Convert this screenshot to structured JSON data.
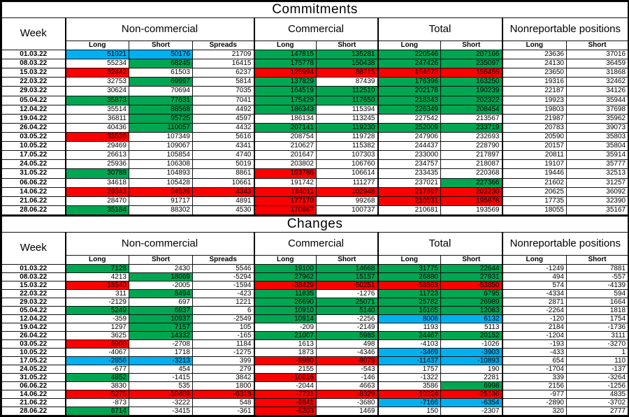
{
  "colors": {
    "green": "#00a651",
    "red": "#fe0000",
    "blue": "#00b0f0",
    "border": "#000000",
    "background": "#ffffff"
  },
  "tables": [
    {
      "title": "Commitments",
      "week_label": "Week",
      "groups": [
        "Non-commercial",
        "Commercial",
        "Total",
        "Nonreportable positions"
      ],
      "sub_headers": [
        "Long",
        "Short",
        "Spreads",
        "Long",
        "Short",
        "Long",
        "Short",
        "Long",
        "Short"
      ],
      "col_keys": [
        "noncommercial-long",
        "noncommercial-short",
        "noncommercial-spreads",
        "commercial-long",
        "commercial-short",
        "total-long",
        "total-short",
        "nonreportable-long",
        "nonreportable-short"
      ],
      "rows": [
        {
          "week": "01.03.22",
          "values": [
            51021,
            50176,
            21709,
            147815,
            135281,
            220546,
            207166,
            23636,
            37016
          ],
          "colors": [
            "b",
            "b",
            "",
            "g",
            "g",
            "g",
            "g",
            "",
            ""
          ]
        },
        {
          "week": "08.03.22",
          "values": [
            55234,
            68245,
            16415,
            175778,
            150438,
            247426,
            235097,
            24130,
            36459
          ],
          "colors": [
            "",
            "g",
            "",
            "g",
            "g",
            "g",
            "g",
            "",
            ""
          ]
        },
        {
          "week": "15.03.22",
          "values": [
            32442,
            61503,
            6237,
            125994,
            88715,
            164673,
            156455,
            23650,
            31868
          ],
          "colors": [
            "r",
            "",
            "",
            "r",
            "r",
            "r",
            "r",
            "",
            ""
          ]
        },
        {
          "week": "22.03.22",
          "values": [
            32753,
            69997,
            5814,
            137829,
            87439,
            176396,
            163250,
            19316,
            32462
          ],
          "colors": [
            "",
            "g",
            "",
            "g",
            "",
            "g",
            "g",
            "",
            ""
          ]
        },
        {
          "week": "29.03.22",
          "values": [
            30624,
            70694,
            7035,
            164519,
            112510,
            202178,
            190239,
            22187,
            34126
          ],
          "colors": [
            "",
            "",
            "",
            "g",
            "g",
            "g",
            "g",
            "",
            ""
          ]
        },
        {
          "week": "05.04.22",
          "values": [
            35873,
            77631,
            7041,
            175429,
            117650,
            218343,
            202322,
            19923,
            35944
          ],
          "colors": [
            "g",
            "g",
            "",
            "g",
            "g",
            "g",
            "g",
            "",
            ""
          ]
        },
        {
          "week": "12.04.22",
          "values": [
            35514,
            88568,
            4492,
            186343,
            115394,
            226349,
            208454,
            19803,
            37698
          ],
          "colors": [
            "",
            "g",
            "",
            "g",
            "",
            "g",
            "g",
            "",
            ""
          ]
        },
        {
          "week": "19.04.22",
          "values": [
            36811,
            95725,
            4597,
            186134,
            113245,
            227542,
            213567,
            21987,
            35962
          ],
          "colors": [
            "",
            "g",
            "",
            "",
            "",
            "",
            "",
            "",
            ""
          ]
        },
        {
          "week": "26.04.22",
          "values": [
            40436,
            110057,
            4432,
            207141,
            119230,
            252009,
            233719,
            20783,
            39073
          ],
          "colors": [
            "",
            "g",
            "",
            "g",
            "g",
            "g",
            "g",
            "",
            ""
          ]
        },
        {
          "week": "03.05.22",
          "values": [
            33536,
            107349,
            5616,
            208754,
            119728,
            247906,
            232693,
            20590,
            35803
          ],
          "colors": [
            "r",
            "",
            "",
            "",
            "",
            "",
            "",
            "",
            ""
          ]
        },
        {
          "week": "10.05.22",
          "values": [
            29469,
            109067,
            4341,
            210627,
            115382,
            244437,
            228790,
            20157,
            35804
          ],
          "colors": [
            "",
            "",
            "",
            "",
            "",
            "",
            "",
            "",
            ""
          ]
        },
        {
          "week": "17.05.22",
          "values": [
            26613,
            105854,
            4740,
            201647,
            107303,
            233000,
            217897,
            20811,
            35914
          ],
          "colors": [
            "",
            "",
            "",
            "",
            "",
            "",
            "",
            "",
            ""
          ]
        },
        {
          "week": "24.05.22",
          "values": [
            25936,
            106308,
            5019,
            203802,
            106760,
            234757,
            218087,
            19107,
            35777
          ],
          "colors": [
            "",
            "",
            "",
            "",
            "",
            "",
            "",
            "",
            ""
          ]
        },
        {
          "week": "31.05.22",
          "values": [
            30788,
            104893,
            8861,
            193786,
            106614,
            233435,
            220368,
            19446,
            32513
          ],
          "colors": [
            "g",
            "",
            "",
            "r",
            "",
            "",
            "",
            "",
            ""
          ]
        },
        {
          "week": "06.06.22",
          "values": [
            34618,
            105428,
            10661,
            191742,
            111277,
            237021,
            227366,
            21602,
            31257
          ],
          "colors": [
            "",
            "",
            "",
            "",
            "",
            "",
            "g",
            "",
            ""
          ]
        },
        {
          "week": "14.06.22",
          "values": [
            29343,
            94939,
            4343,
            184011,
            102948,
            217697,
            202230,
            20625,
            36092
          ],
          "colors": [
            "r",
            "r",
            "r",
            "r",
            "r",
            "r",
            "r",
            "",
            ""
          ]
        },
        {
          "week": "21.06.22",
          "values": [
            28470,
            91717,
            4891,
            177170,
            99268,
            210531,
            195876,
            17735,
            32390
          ],
          "colors": [
            "",
            "",
            "",
            "r",
            "",
            "r",
            "r",
            "",
            ""
          ]
        },
        {
          "week": "28.06.22",
          "values": [
            35184,
            88302,
            4530,
            170967,
            100737,
            210681,
            193569,
            18055,
            35167
          ],
          "colors": [
            "g",
            "",
            "",
            "r",
            "",
            "",
            "",
            "",
            ""
          ],
          "bold": [
            5,
            6
          ]
        }
      ]
    },
    {
      "title": "Changes",
      "week_label": "Week",
      "groups": [
        "Non-commercial",
        "Commercial",
        "Total",
        "Nonreportable positions"
      ],
      "sub_headers": [
        "Long",
        "Short",
        "Spreads",
        "Long",
        "Short",
        "Long",
        "Short",
        "Long",
        "Short"
      ],
      "col_keys": [
        "noncommercial-long",
        "noncommercial-short",
        "noncommercial-spreads",
        "commercial-long",
        "commercial-short",
        "total-long",
        "total-short",
        "nonreportable-long",
        "nonreportable-short"
      ],
      "rows": [
        {
          "week": "01.03.22",
          "values": [
            7128,
            2430,
            5546,
            19100,
            14668,
            31775,
            22644,
            -1249,
            7881
          ],
          "colors": [
            "g",
            "",
            "",
            "g",
            "g",
            "g",
            "g",
            "",
            ""
          ]
        },
        {
          "week": "08.03.22",
          "values": [
            4213,
            18069,
            -5294,
            27962,
            15157,
            26880,
            27931,
            494,
            -557
          ],
          "colors": [
            "",
            "g",
            "",
            "g",
            "g",
            "g",
            "g",
            "",
            ""
          ]
        },
        {
          "week": "15.03.22",
          "values": [
            -18540,
            -2005,
            -1594,
            -38429,
            -50251,
            -58563,
            -53850,
            574,
            -4139
          ],
          "colors": [
            "r",
            "",
            "",
            "r",
            "r",
            "r",
            "r",
            "",
            ""
          ]
        },
        {
          "week": "22.03.22",
          "values": [
            311,
            8494,
            -423,
            11835,
            -1276,
            11723,
            6795,
            -4334,
            594
          ],
          "colors": [
            "",
            "g",
            "",
            "g",
            "",
            "g",
            "g",
            "",
            ""
          ]
        },
        {
          "week": "29.03.22",
          "values": [
            -2129,
            697,
            1221,
            26690,
            25071,
            25782,
            26989,
            2871,
            1664
          ],
          "colors": [
            "",
            "",
            "",
            "g",
            "g",
            "g",
            "g",
            "",
            ""
          ]
        },
        {
          "week": "05.04.22",
          "values": [
            5249,
            6937,
            6,
            10910,
            5140,
            16165,
            12083,
            -2264,
            1818
          ],
          "colors": [
            "g",
            "g",
            "",
            "g",
            "g",
            "g",
            "g",
            "",
            ""
          ]
        },
        {
          "week": "12.04.22",
          "values": [
            -359,
            10937,
            -2549,
            10914,
            -2256,
            8006,
            6132,
            -120,
            1754
          ],
          "colors": [
            "",
            "g",
            "",
            "g",
            "",
            "b",
            "b",
            "",
            ""
          ]
        },
        {
          "week": "19.04.22",
          "values": [
            1297,
            7157,
            105,
            -209,
            -2149,
            1193,
            5113,
            2184,
            -1736
          ],
          "colors": [
            "",
            "g",
            "",
            "",
            "",
            "",
            "",
            "",
            ""
          ]
        },
        {
          "week": "26.04.22",
          "values": [
            3625,
            14332,
            -165,
            21007,
            5985,
            24467,
            20152,
            -1204,
            3111
          ],
          "colors": [
            "",
            "g",
            "",
            "g",
            "g",
            "g",
            "g",
            "",
            ""
          ]
        },
        {
          "week": "03.05.22",
          "values": [
            -6900,
            -2708,
            1184,
            1613,
            498,
            -4103,
            -1026,
            -193,
            -3270
          ],
          "colors": [
            "r",
            "",
            "",
            "",
            "",
            "",
            "",
            "",
            ""
          ]
        },
        {
          "week": "10.05.22",
          "values": [
            -4067,
            1718,
            -1275,
            1873,
            -4346,
            -3469,
            -3903,
            -433,
            1
          ],
          "colors": [
            "",
            "",
            "",
            "",
            "",
            "b",
            "b",
            "",
            ""
          ]
        },
        {
          "week": "17.05.22",
          "values": [
            -2856,
            -3213,
            399,
            -8980,
            -8079,
            -11437,
            -10893,
            654,
            110
          ],
          "colors": [
            "b",
            "b",
            "",
            "r",
            "r",
            "b",
            "b",
            "",
            ""
          ]
        },
        {
          "week": "24.05.22",
          "values": [
            -677,
            454,
            279,
            2155,
            -543,
            1757,
            190,
            -1704,
            -137
          ],
          "colors": [
            "",
            "",
            "",
            "",
            "",
            "",
            "",
            "",
            ""
          ]
        },
        {
          "week": "31.05.22",
          "values": [
            4852,
            -1415,
            3842,
            -10016,
            -146,
            -1322,
            2281,
            339,
            -3264
          ],
          "colors": [
            "g",
            "",
            "",
            "r",
            "",
            "",
            "",
            "",
            ""
          ]
        },
        {
          "week": "06.06.22",
          "values": [
            3830,
            535,
            1800,
            -2044,
            4663,
            3586,
            6998,
            2156,
            -1256
          ],
          "colors": [
            "",
            "",
            "",
            "",
            "",
            "",
            "g",
            "",
            ""
          ]
        },
        {
          "week": "14.06.22",
          "values": [
            -5275,
            -10489,
            -6318,
            -7731,
            -8329,
            -19324,
            -25136,
            -977,
            4835
          ],
          "colors": [
            "r",
            "r",
            "r",
            "r",
            "r",
            "r",
            "r",
            "",
            ""
          ]
        },
        {
          "week": "21.06.22",
          "values": [
            -873,
            -3222,
            548,
            -6841,
            -3680,
            -7166,
            -6354,
            -2890,
            -3702
          ],
          "colors": [
            "",
            "",
            "",
            "r",
            "",
            "b",
            "b",
            "",
            ""
          ]
        },
        {
          "week": "28.06.22",
          "values": [
            6714,
            -3415,
            -361,
            -6203,
            1469,
            150,
            -2307,
            320,
            2777
          ],
          "colors": [
            "g",
            "",
            "",
            "r",
            "",
            "",
            "",
            "",
            ""
          ],
          "bold": [
            5,
            6
          ]
        }
      ]
    }
  ]
}
